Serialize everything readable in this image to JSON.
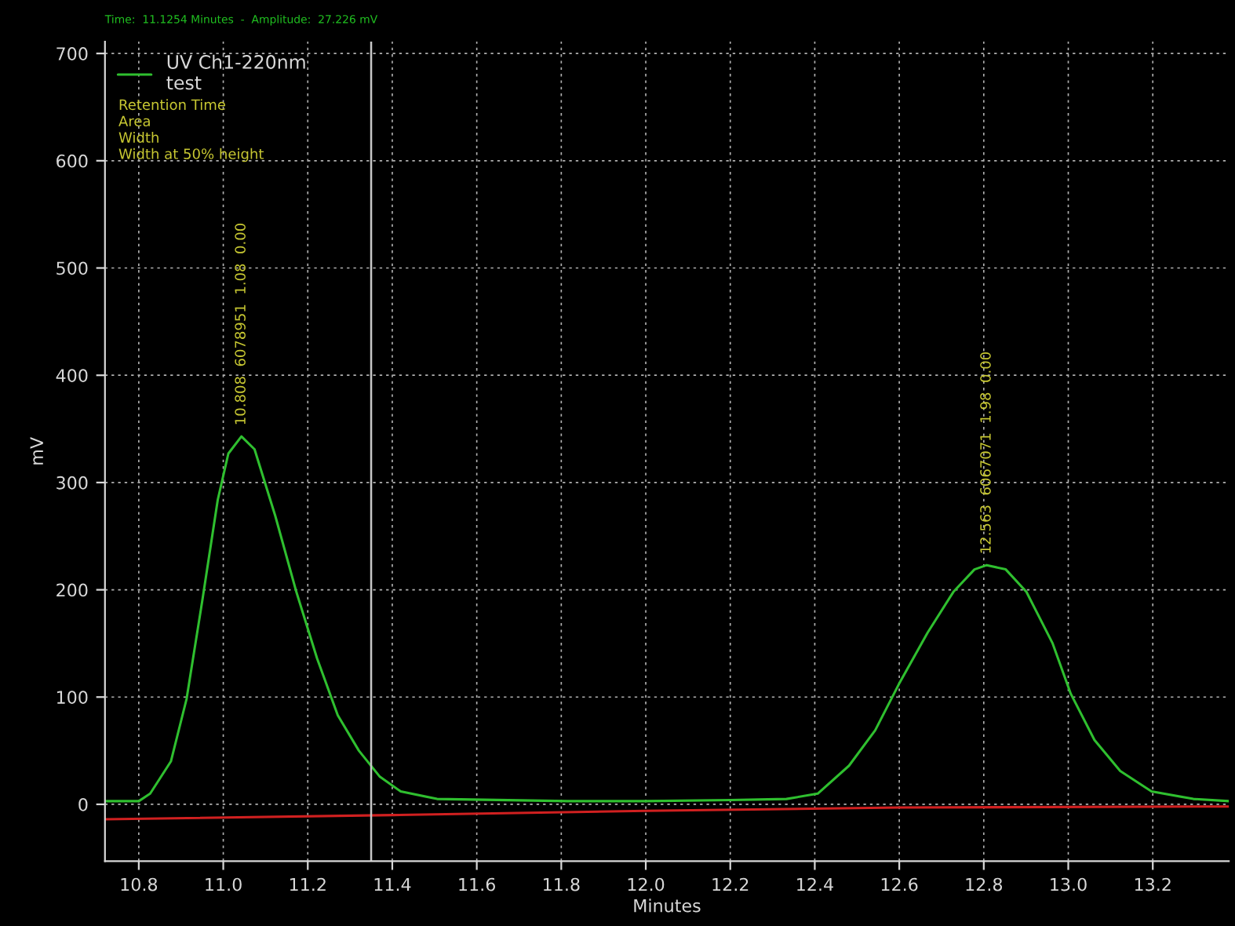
{
  "chart_data": {
    "type": "line",
    "xlabel": "Minutes",
    "ylabel": "mV",
    "xlim": [
      10.72,
      13.38
    ],
    "ylim": [
      -53,
      711
    ],
    "xticks": [
      10.8,
      {
        "value": 11.0,
        "label": "11.0"
      },
      11.2,
      11.4,
      11.6,
      11.8,
      {
        "value": 12.0,
        "label": "12.0"
      },
      12.2,
      12.4,
      12.6,
      12.8,
      {
        "value": 13.0,
        "label": "13.0"
      },
      13.2
    ],
    "yticks": [
      0,
      100,
      200,
      300,
      400,
      500,
      600,
      700
    ],
    "grid": true,
    "legend": "top left",
    "marker": "none",
    "line_style": "solid",
    "series": [
      {
        "name": "UV Ch1-220nm\ntest",
        "color": "#2fbf2f",
        "x": [
          10.72,
          10.8,
          10.827,
          10.876,
          10.913,
          10.95,
          10.987,
          11.012,
          11.043,
          11.074,
          11.123,
          11.173,
          11.222,
          11.271,
          11.321,
          11.37,
          11.42,
          11.506,
          11.815,
          12.0,
          12.2,
          12.333,
          12.407,
          12.481,
          12.543,
          12.599,
          12.667,
          12.728,
          12.778,
          12.807,
          12.852,
          12.901,
          12.963,
          13.006,
          13.062,
          13.123,
          13.197,
          13.296,
          13.38
        ],
        "values": [
          3,
          3,
          10,
          40,
          98,
          189,
          284,
          327,
          343,
          331,
          269,
          198,
          136,
          83,
          50,
          26,
          12,
          5,
          3,
          3,
          4,
          5,
          10,
          36,
          69,
          112,
          160,
          198,
          219,
          223,
          219,
          198,
          150,
          103,
          60,
          31,
          12,
          5,
          3
        ]
      },
      {
        "color": "#d02020",
        "x": [
          10.72,
          11.4,
          12.0,
          12.6,
          13.38
        ],
        "values": [
          -14,
          -10,
          -6,
          -3,
          -2
        ]
      }
    ],
    "ref_lines": [
      {
        "axis": "x",
        "value": 11.35,
        "color": "#c8c8c8",
        "line_style": "solid"
      }
    ],
    "annotations": [
      "Time:  11.1254 Minutes  -  Amplitude:  27.226 mV",
      "Retention Time",
      "Area",
      "Width",
      "Width at 50% height",
      {
        "text": "10.808  6078951  1.08  0.00",
        "x": 11.043,
        "y": 343
      },
      {
        "text": "12.563  6067071  1.98  0.00",
        "x": 12.807,
        "y": 223
      }
    ]
  }
}
